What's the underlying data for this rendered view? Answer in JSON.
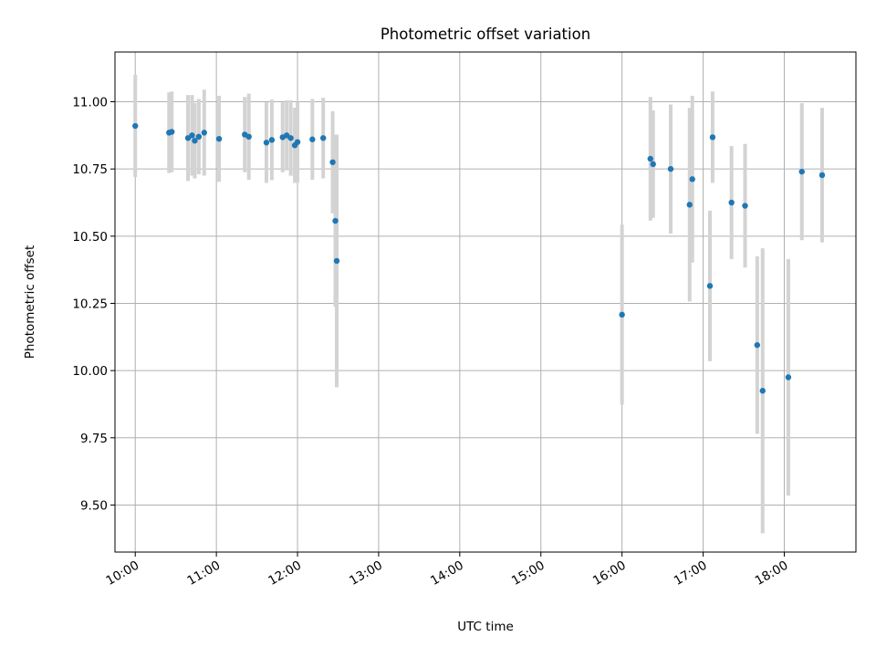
{
  "chart_data": {
    "type": "scatter",
    "title": "Photometric offset variation",
    "xlabel": "UTC time",
    "ylabel": "Photometric offset",
    "x_unit": "UTC time (HH:MM)",
    "xlim": [
      "09:45",
      "18:53"
    ],
    "ylim": [
      9.325,
      11.185
    ],
    "grid": true,
    "xticks": [
      "10:00",
      "11:00",
      "12:00",
      "13:00",
      "14:00",
      "15:00",
      "16:00",
      "17:00",
      "18:00"
    ],
    "yticks": [
      "9.50",
      "9.75",
      "10.00",
      "10.25",
      "10.50",
      "10.75",
      "11.00"
    ],
    "colors": {
      "points": "#1f77b4",
      "errorbars": "#d3d3d3",
      "grid": "#b0b0b0"
    },
    "series": [
      {
        "points": [
          {
            "x": "10:00",
            "y": 10.91,
            "yerr": 0.19
          },
          {
            "x": "10:25",
            "y": 10.885,
            "yerr": 0.15
          },
          {
            "x": "10:27",
            "y": 10.888,
            "yerr": 0.15
          },
          {
            "x": "10:39",
            "y": 10.865,
            "yerr": 0.16
          },
          {
            "x": "10:42",
            "y": 10.875,
            "yerr": 0.15
          },
          {
            "x": "10:44",
            "y": 10.855,
            "yerr": 0.14
          },
          {
            "x": "10:47",
            "y": 10.87,
            "yerr": 0.14
          },
          {
            "x": "10:51",
            "y": 10.885,
            "yerr": 0.16
          },
          {
            "x": "11:02",
            "y": 10.862,
            "yerr": 0.16
          },
          {
            "x": "11:21",
            "y": 10.878,
            "yerr": 0.14
          },
          {
            "x": "11:24",
            "y": 10.87,
            "yerr": 0.16
          },
          {
            "x": "11:37",
            "y": 10.848,
            "yerr": 0.15
          },
          {
            "x": "11:41",
            "y": 10.858,
            "yerr": 0.15
          },
          {
            "x": "11:49",
            "y": 10.868,
            "yerr": 0.13
          },
          {
            "x": "11:52",
            "y": 10.875,
            "yerr": 0.13
          },
          {
            "x": "11:55",
            "y": 10.865,
            "yerr": 0.14
          },
          {
            "x": "11:58",
            "y": 10.838,
            "yerr": 0.14
          },
          {
            "x": "12:00",
            "y": 10.85,
            "yerr": 0.15
          },
          {
            "x": "12:11",
            "y": 10.86,
            "yerr": 0.15
          },
          {
            "x": "12:19",
            "y": 10.865,
            "yerr": 0.15
          },
          {
            "x": "12:26",
            "y": 10.775,
            "yerr": 0.19
          },
          {
            "x": "12:28",
            "y": 10.557,
            "yerr": 0.32
          },
          {
            "x": "12:29",
            "y": 10.408,
            "yerr": 0.47
          },
          {
            "x": "16:00",
            "y": 10.208,
            "yerr": 0.335
          },
          {
            "x": "16:21",
            "y": 10.788,
            "yerr": 0.23
          },
          {
            "x": "16:23",
            "y": 10.768,
            "yerr": 0.2
          },
          {
            "x": "16:36",
            "y": 10.75,
            "yerr": 0.24
          },
          {
            "x": "16:50",
            "y": 10.617,
            "yerr": 0.36
          },
          {
            "x": "16:52",
            "y": 10.712,
            "yerr": 0.31
          },
          {
            "x": "17:05",
            "y": 10.315,
            "yerr": 0.28
          },
          {
            "x": "17:07",
            "y": 10.868,
            "yerr": 0.17
          },
          {
            "x": "17:21",
            "y": 10.625,
            "yerr": 0.21
          },
          {
            "x": "17:31",
            "y": 10.613,
            "yerr": 0.23
          },
          {
            "x": "17:40",
            "y": 10.095,
            "yerr": 0.33
          },
          {
            "x": "17:44",
            "y": 9.925,
            "yerr": 0.53
          },
          {
            "x": "18:03",
            "y": 9.975,
            "yerr": 0.44
          },
          {
            "x": "18:13",
            "y": 10.74,
            "yerr": 0.255
          },
          {
            "x": "18:28",
            "y": 10.727,
            "yerr": 0.25
          }
        ]
      }
    ]
  }
}
